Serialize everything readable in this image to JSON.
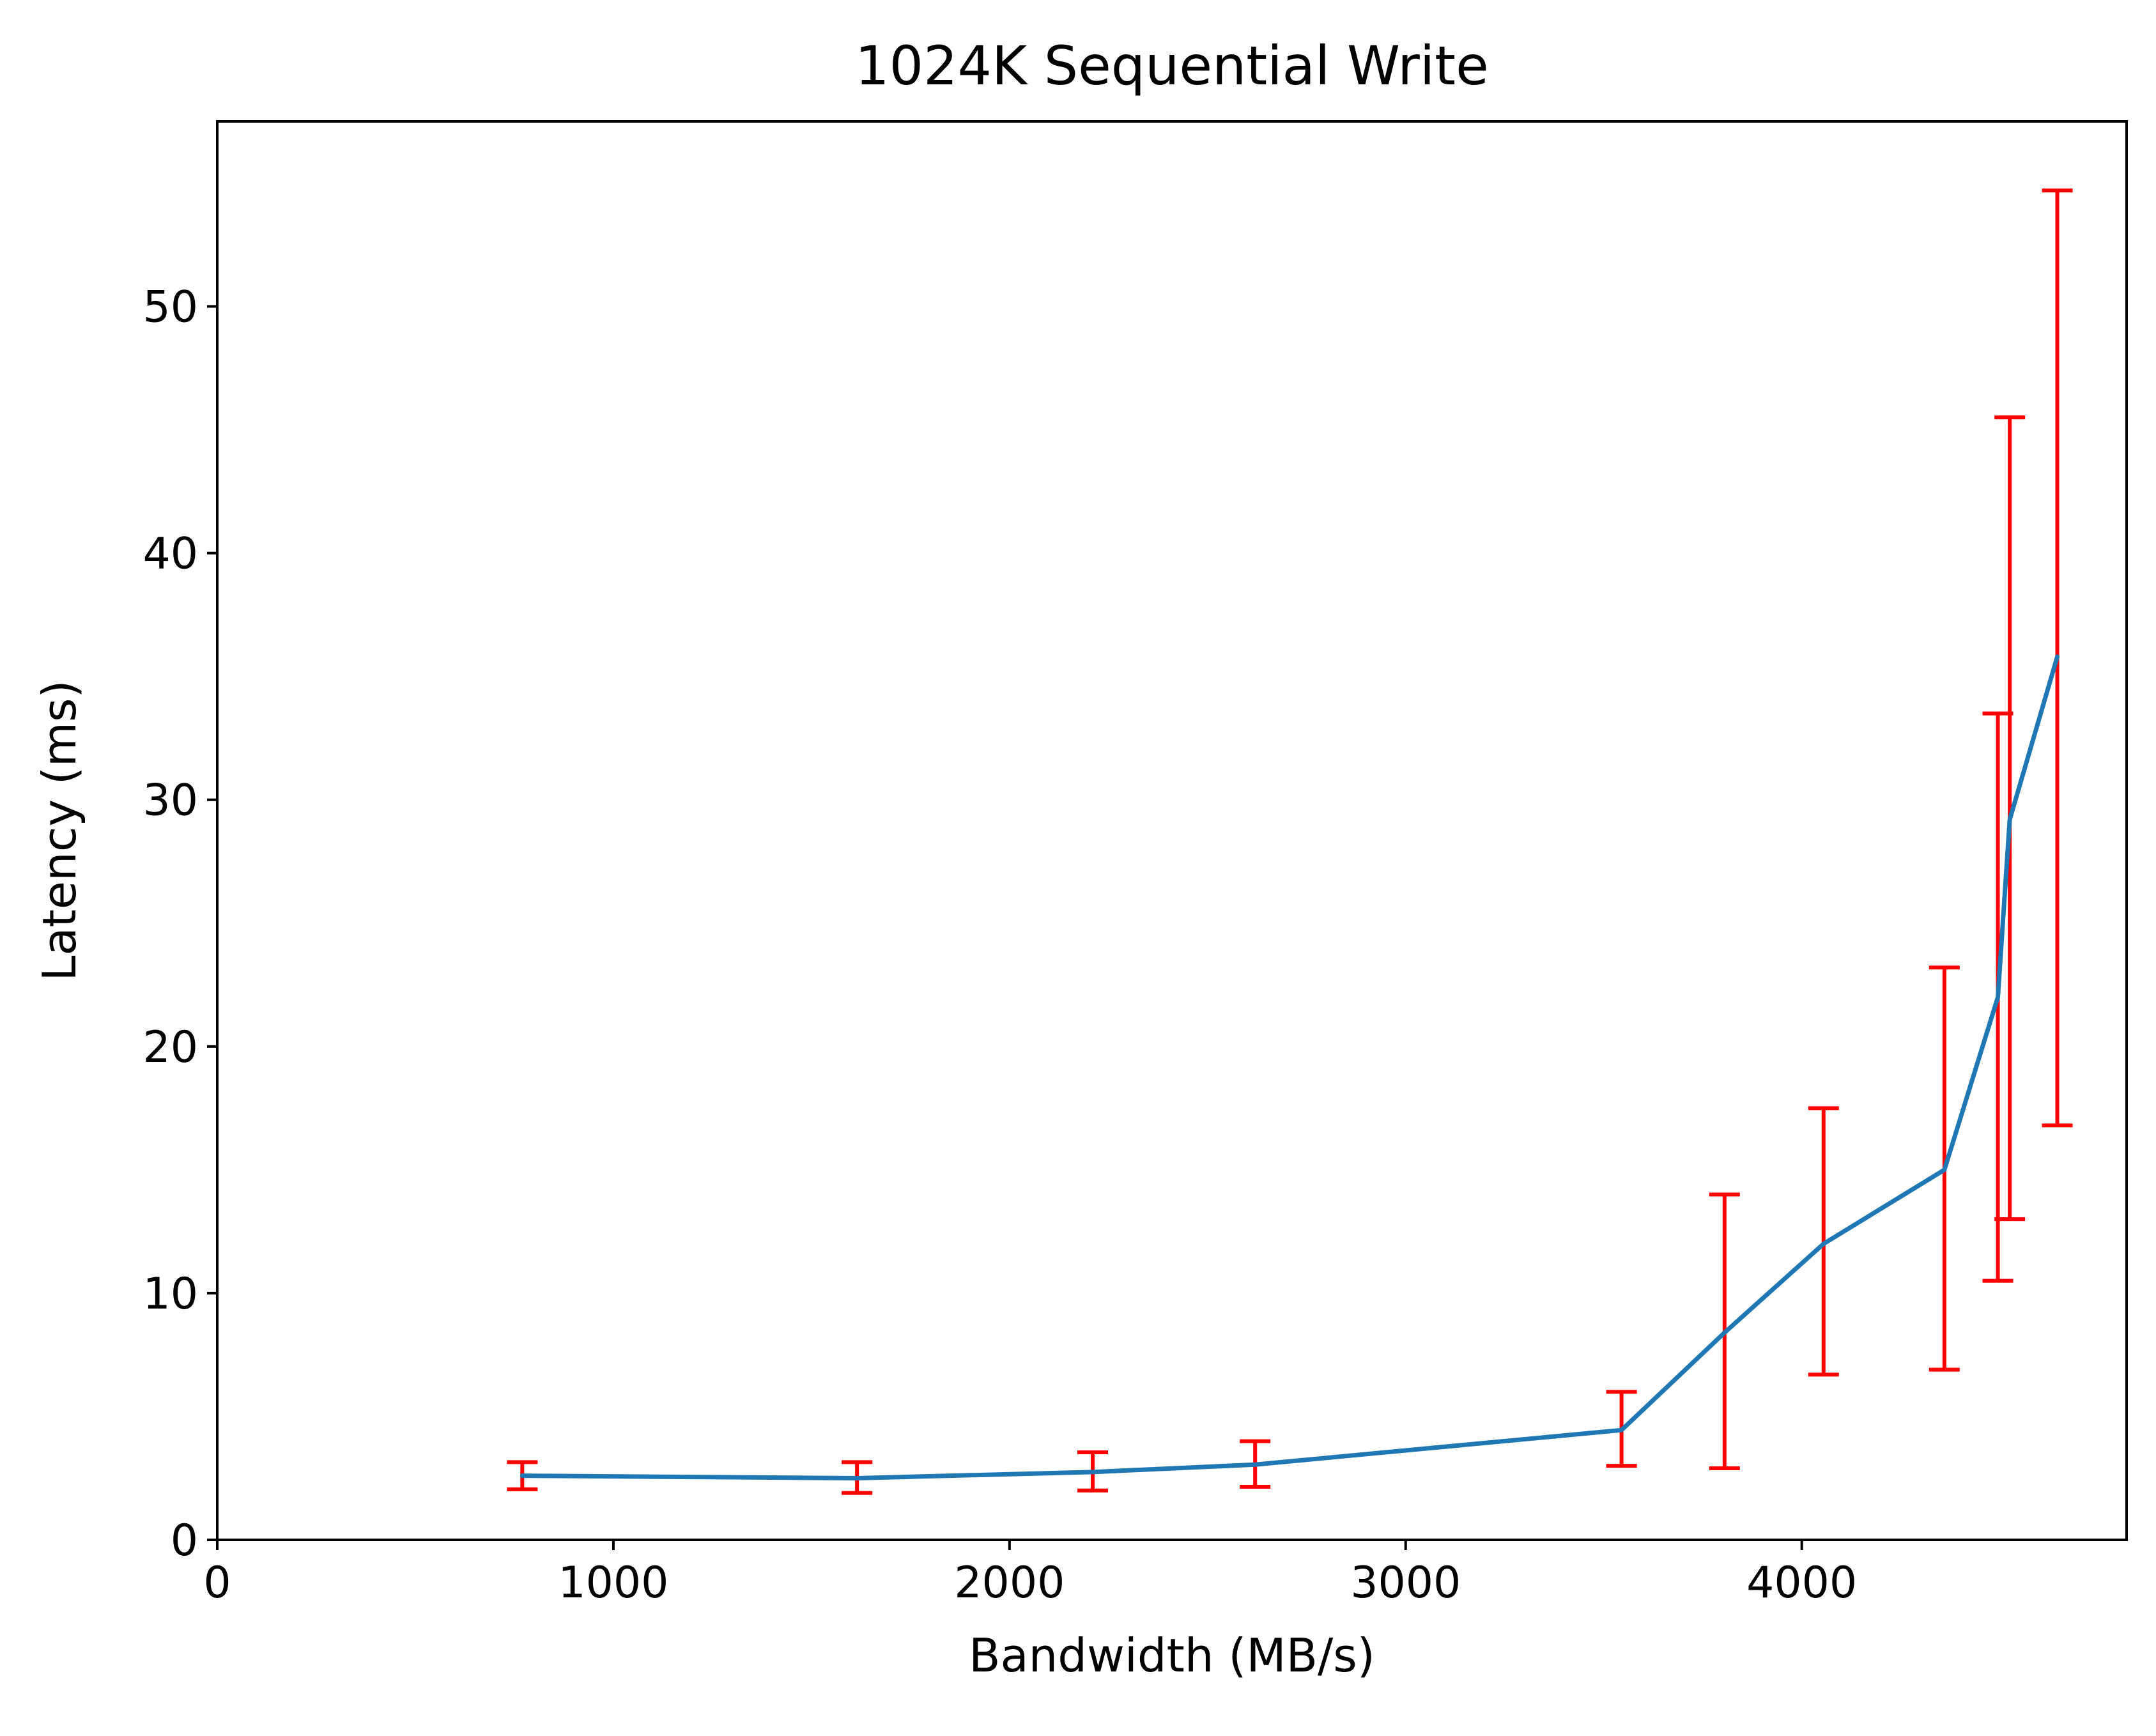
{
  "chart_data": {
    "type": "line",
    "title": "1024K  Sequential Write",
    "xlabel": "Bandwidth (MB/s)",
    "ylabel": "Latency (ms)",
    "xlim": [
      0,
      4820
    ],
    "ylim": [
      0,
      57.5
    ],
    "x_ticks": [
      0,
      1000,
      2000,
      3000,
      4000
    ],
    "y_ticks": [
      0,
      10,
      20,
      30,
      40,
      50
    ],
    "grid": false,
    "legend": "none",
    "series": [
      {
        "color": "#1f77b4",
        "x": [
          770,
          1615,
          2210,
          2620,
          3545,
          3805,
          4055,
          4360,
          4495,
          4525,
          4645
        ],
        "y": [
          2.6,
          2.5,
          2.75,
          3.05,
          4.45,
          8.4,
          12.0,
          15.0,
          22.0,
          29.2,
          35.8
        ]
      }
    ],
    "error_bars": {
      "color": "#ff0000",
      "low": [
        2.05,
        1.9,
        2.0,
        2.15,
        3.0,
        2.9,
        6.7,
        6.9,
        10.5,
        13.0,
        16.8
      ],
      "high": [
        3.15,
        3.15,
        3.55,
        4.0,
        6.0,
        14.0,
        17.5,
        23.2,
        33.5,
        45.5,
        54.7
      ]
    }
  }
}
